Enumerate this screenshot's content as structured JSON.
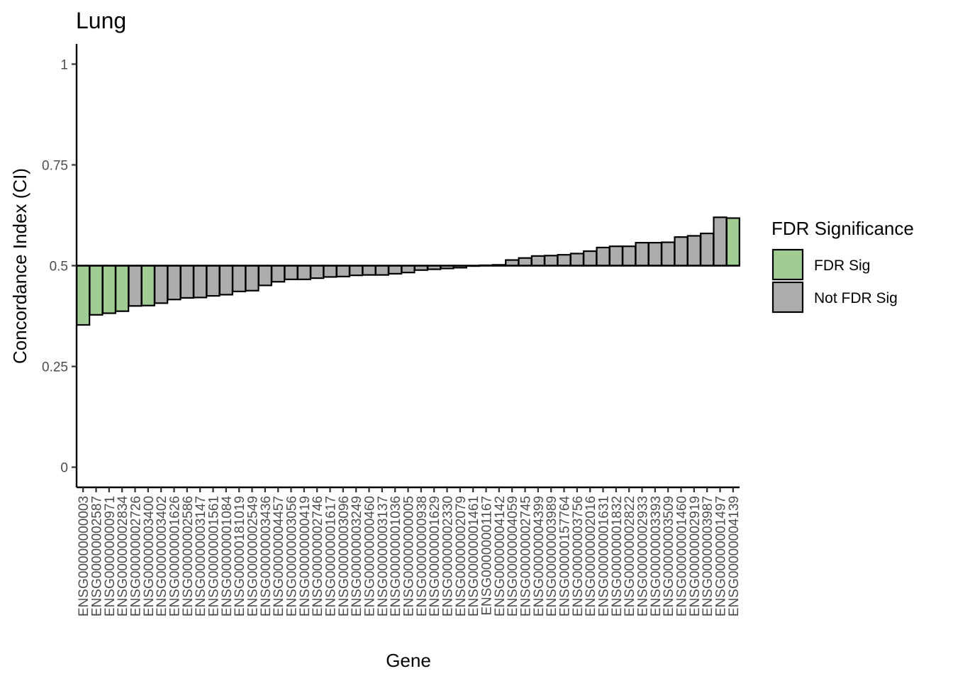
{
  "chart_data": {
    "type": "bar",
    "title": "Lung",
    "xlabel": "Gene",
    "ylabel": "Concordance Index (CI)",
    "ylim": [
      -0.05,
      1.05
    ],
    "yticks": [
      0,
      0.25,
      0.5,
      0.75,
      1
    ],
    "ytick_labels": [
      "0",
      "0.25",
      "0.5",
      "0.75",
      "1"
    ],
    "baseline": 0.5,
    "grid": false,
    "legend": {
      "title": "FDR Significance",
      "placement": "right",
      "entries": [
        {
          "label": "FDR Sig",
          "color": "#a1cc94"
        },
        {
          "label": "Not FDR Sig",
          "color": "#adadad"
        }
      ]
    },
    "colors": {
      "FDR Sig": "#a1cc94",
      "Not FDR Sig": "#adadad"
    },
    "categories": [
      "ENSG00000000003",
      "ENSG00000002587",
      "ENSG00000000971",
      "ENSG00000002834",
      "ENSG00000002726",
      "ENSG00000003400",
      "ENSG00000003402",
      "ENSG00000001626",
      "ENSG00000002586",
      "ENSG00000003147",
      "ENSG00000001561",
      "ENSG00000001084",
      "ENSG00000181019",
      "ENSG00000002549",
      "ENSG00000003436",
      "ENSG00000004457",
      "ENSG00000003056",
      "ENSG00000000419",
      "ENSG00000002746",
      "ENSG00000001617",
      "ENSG00000003096",
      "ENSG00000003249",
      "ENSG00000000460",
      "ENSG00000003137",
      "ENSG00000001036",
      "ENSG00000000005",
      "ENSG00000000938",
      "ENSG00000001629",
      "ENSG00000002330",
      "ENSG00000002079",
      "ENSG00000001461",
      "ENSG00000001167",
      "ENSG00000004142",
      "ENSG00000004059",
      "ENSG00000002745",
      "ENSG00000004399",
      "ENSG00000003989",
      "ENSG00000157764",
      "ENSG00000003756",
      "ENSG00000002016",
      "ENSG00000001631",
      "ENSG00000001832",
      "ENSG00000002822",
      "ENSG00000002933",
      "ENSG00000003393",
      "ENSG00000003509",
      "ENSG00000001460",
      "ENSG00000002919",
      "ENSG00000003987",
      "ENSG00000001497",
      "ENSG00000004139"
    ],
    "values": [
      0.353,
      0.378,
      0.382,
      0.387,
      0.4,
      0.401,
      0.407,
      0.416,
      0.42,
      0.421,
      0.425,
      0.428,
      0.436,
      0.438,
      0.451,
      0.46,
      0.466,
      0.466,
      0.469,
      0.472,
      0.473,
      0.476,
      0.477,
      0.477,
      0.48,
      0.483,
      0.489,
      0.491,
      0.493,
      0.495,
      0.499,
      0.501,
      0.502,
      0.514,
      0.519,
      0.524,
      0.525,
      0.527,
      0.53,
      0.536,
      0.545,
      0.548,
      0.548,
      0.557,
      0.557,
      0.558,
      0.571,
      0.574,
      0.58,
      0.62,
      0.618
    ],
    "significance": [
      "FDR Sig",
      "FDR Sig",
      "FDR Sig",
      "FDR Sig",
      "Not FDR Sig",
      "FDR Sig",
      "Not FDR Sig",
      "Not FDR Sig",
      "Not FDR Sig",
      "Not FDR Sig",
      "Not FDR Sig",
      "Not FDR Sig",
      "Not FDR Sig",
      "Not FDR Sig",
      "Not FDR Sig",
      "Not FDR Sig",
      "Not FDR Sig",
      "Not FDR Sig",
      "Not FDR Sig",
      "Not FDR Sig",
      "Not FDR Sig",
      "Not FDR Sig",
      "Not FDR Sig",
      "Not FDR Sig",
      "Not FDR Sig",
      "Not FDR Sig",
      "Not FDR Sig",
      "Not FDR Sig",
      "Not FDR Sig",
      "Not FDR Sig",
      "Not FDR Sig",
      "Not FDR Sig",
      "Not FDR Sig",
      "Not FDR Sig",
      "Not FDR Sig",
      "Not FDR Sig",
      "Not FDR Sig",
      "Not FDR Sig",
      "Not FDR Sig",
      "Not FDR Sig",
      "Not FDR Sig",
      "Not FDR Sig",
      "Not FDR Sig",
      "Not FDR Sig",
      "Not FDR Sig",
      "Not FDR Sig",
      "Not FDR Sig",
      "Not FDR Sig",
      "Not FDR Sig",
      "Not FDR Sig",
      "FDR Sig"
    ]
  }
}
